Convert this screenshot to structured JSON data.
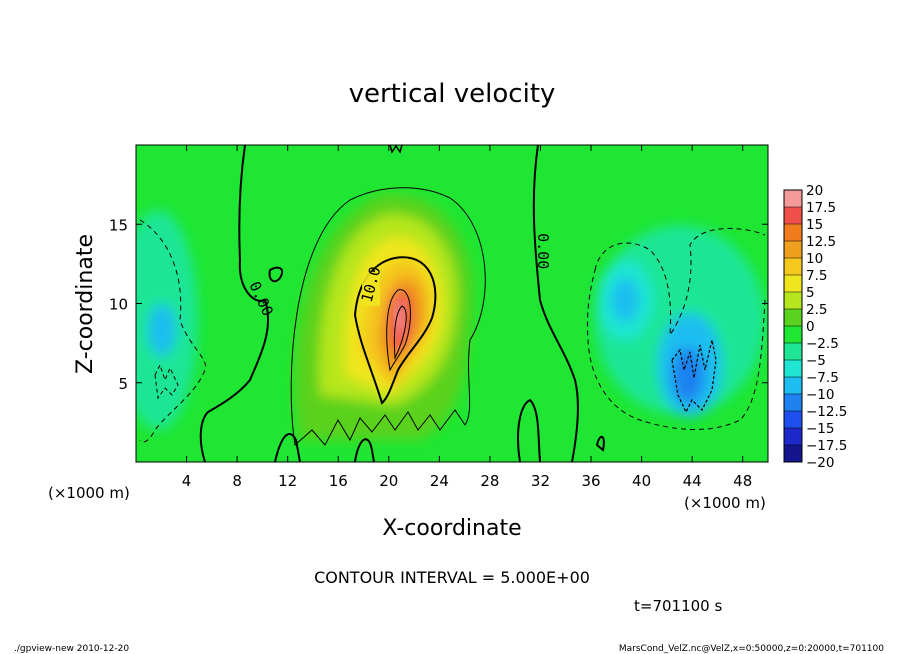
{
  "chart_data": {
    "type": "heatmap",
    "title": "vertical velocity",
    "xlabel": "X-coordinate",
    "ylabel": "Z-coordinate",
    "x_unit_left": "(×1000 m)",
    "x_unit_right": "(×1000 m)",
    "xlim": [
      0,
      50
    ],
    "ylim": [
      0,
      20
    ],
    "x_ticks": [
      4,
      8,
      12,
      16,
      20,
      24,
      28,
      32,
      36,
      40,
      44,
      48
    ],
    "y_ticks": [
      5,
      10,
      15
    ],
    "colorbar": {
      "levels": [
        "20",
        "17.5",
        "15",
        "12.5",
        "10",
        "7.5",
        "5",
        "2.5",
        "0",
        "−2.5",
        "−5",
        "−7.5",
        "−10",
        "−12.5",
        "−15",
        "−17.5",
        "−20"
      ],
      "colors": [
        "#f49a9a",
        "#f0504a",
        "#f07c1e",
        "#f0a01e",
        "#f5c81e",
        "#f0e61e",
        "#b6e61e",
        "#5ad21e",
        "#1ee632",
        "#1ee696",
        "#1ee6d2",
        "#1ebef0",
        "#1e82f0",
        "#1e50f0",
        "#1e28c8",
        "#14148c",
        "#6e1eb4"
      ]
    },
    "features": [
      {
        "kind": "updraft",
        "x": 20.5,
        "z": 9,
        "peak": 20
      },
      {
        "kind": "downdraft",
        "x": 43,
        "z": 5,
        "min": -10
      },
      {
        "kind": "downdraft",
        "x": 2,
        "z": 8,
        "min": -5
      }
    ],
    "contour_labels": [
      {
        "text": "10.0",
        "x": 18.6,
        "z": 11.2,
        "rot": -75
      },
      {
        "text": "0.00",
        "x": 9.9,
        "z": 10.3,
        "rot": 65
      },
      {
        "text": "0.00",
        "x": 32.2,
        "z": 13.3,
        "rot": 90
      }
    ]
  },
  "annotations": {
    "contour_interval": "CONTOUR INTERVAL = 5.000E+00",
    "time": "t=701100 s",
    "footer_left": "./gpview-new  2010-12-20",
    "footer_right": "MarsCond_VelZ.nc@VelZ,x=0:50000,z=0:20000,t=701100"
  }
}
